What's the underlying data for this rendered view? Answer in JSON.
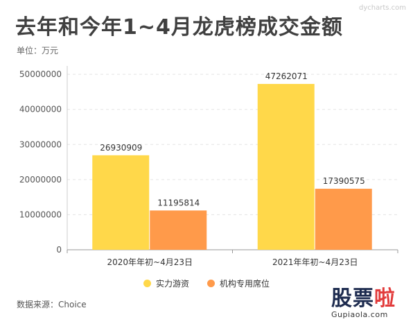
{
  "header": {
    "title": "去年和今年1~4月龙虎榜成交金额",
    "unit": "单位：万元",
    "watermark": "dycharts.com"
  },
  "legend": [
    {
      "label": "实力游资",
      "color": "#ffd84a"
    },
    {
      "label": "机构专用席位",
      "color": "#ff9a4a"
    }
  ],
  "footer": {
    "source": "数据来源：Choice",
    "brand_main": "股票",
    "brand_accent": "啦",
    "brand_url": "Gupiaola.com"
  },
  "chart_data": {
    "type": "bar",
    "title": "去年和今年1~4月龙虎榜成交金额",
    "categories": [
      "2020年年初~4月23日",
      "2021年年初~4月23日"
    ],
    "series": [
      {
        "name": "实力游资",
        "values": [
          26930909,
          47262071
        ],
        "color": "#ffd84a"
      },
      {
        "name": "机构专用席位",
        "values": [
          11195814,
          17390575
        ],
        "color": "#ff9a4a"
      }
    ],
    "yticks": [
      0,
      10000000,
      20000000,
      30000000,
      40000000,
      50000000
    ],
    "ylim": [
      0,
      52000000
    ],
    "grid": true,
    "legend_position": "bottom"
  }
}
